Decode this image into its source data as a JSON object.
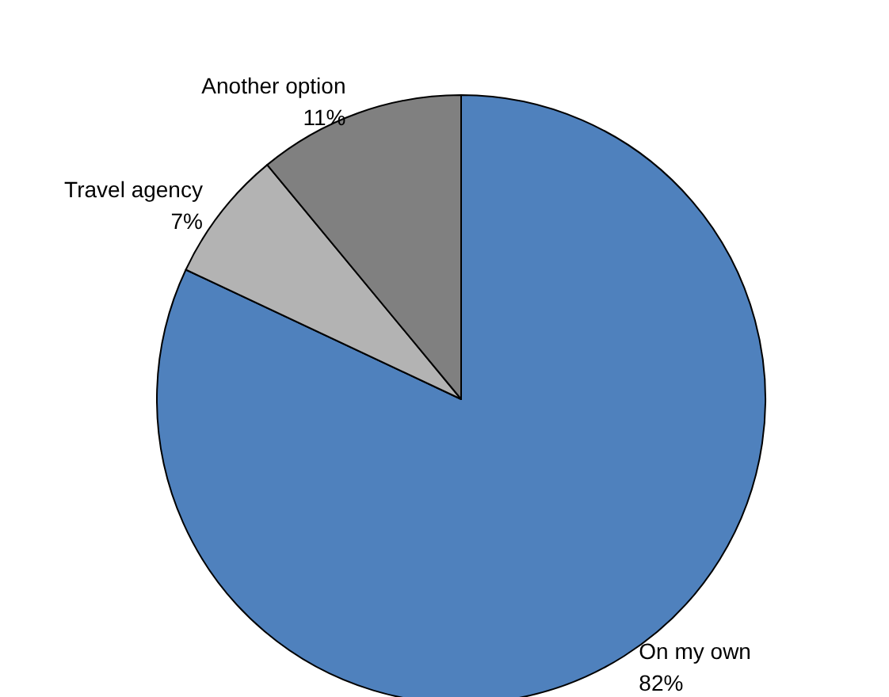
{
  "chart_data": {
    "type": "pie",
    "categories": [
      "On my own",
      "Travel agency",
      "Another option"
    ],
    "values": [
      82,
      7,
      11
    ],
    "value_labels": [
      "82%",
      "7%",
      "11%"
    ],
    "colors": [
      "#4f81bd",
      "#b3b3b3",
      "#808080"
    ],
    "legend": false
  }
}
